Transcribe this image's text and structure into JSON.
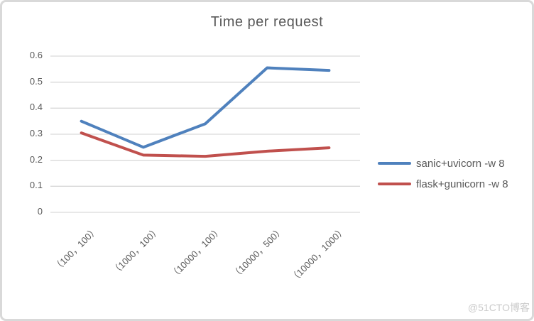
{
  "watermark": "@51CTO博客",
  "colors": {
    "grid": "#d9d9d9",
    "text": "#595959",
    "border": "#d9d9d9",
    "watermark": "#cbcbcb",
    "series_blue": "#4F81BD",
    "series_red": "#C0504D"
  },
  "chart_data": {
    "type": "line",
    "title": "Time per request",
    "categories": [
      "（100，100）",
      "（1000，100）",
      "（10000，100）",
      "（10000，500）",
      "（10000，1000）"
    ],
    "series": [
      {
        "name": "sanic+uvicorn -w 8",
        "color": "#4F81BD",
        "values": [
          0.35,
          0.25,
          0.34,
          0.555,
          0.545
        ]
      },
      {
        "name": "flask+gunicorn -w 8",
        "color": "#C0504D",
        "values": [
          0.305,
          0.22,
          0.215,
          0.235,
          0.248
        ]
      }
    ],
    "xlabel": "",
    "ylabel": "",
    "ylim": [
      0,
      0.6
    ],
    "yticks": [
      0,
      0.1,
      0.2,
      0.3,
      0.4,
      0.5,
      0.6
    ],
    "ytick_labels": [
      "0",
      "0.1",
      "0.2",
      "0.3",
      "0.4",
      "0.5",
      "0.6"
    ],
    "grid": true,
    "legend_position": "right"
  }
}
